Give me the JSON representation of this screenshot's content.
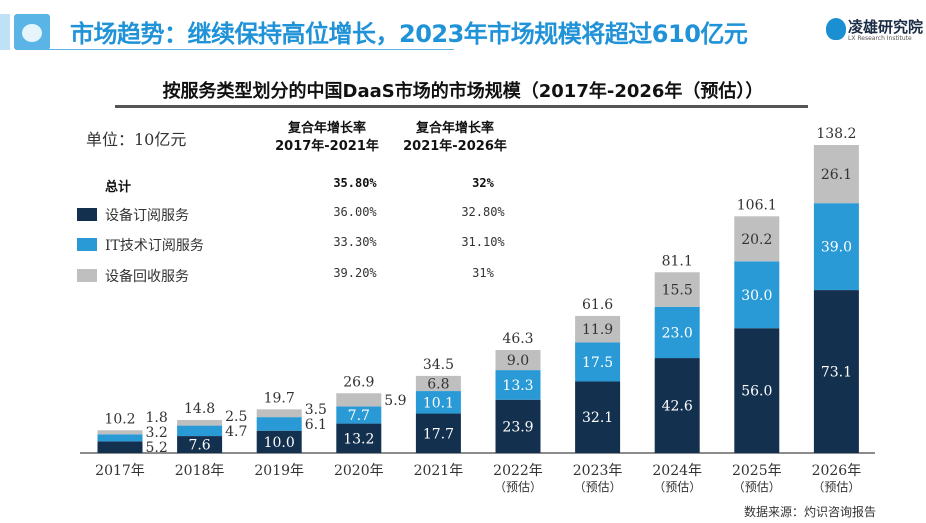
{
  "header": {
    "title": "市场趋势：继续保持高位增长，2023年市场规模将超过610亿元",
    "brand_name": "凌雄研究院",
    "brand_sub": "LX Research Institute",
    "accent": "#1f92d8"
  },
  "legend_table": {
    "unit": "单位：10亿元",
    "cagr_headers": [
      {
        "line1": "复合年增长率",
        "line2": "2017年-2021年"
      },
      {
        "line1": "复合年增长率",
        "line2": "2021年-2026年"
      }
    ],
    "rows": [
      {
        "label": "总计",
        "c1": "35.80%",
        "c2": "32%",
        "color": ""
      },
      {
        "label": "设备订阅服务",
        "c1": "36.00%",
        "c2": "32.80%",
        "color": "#13304f"
      },
      {
        "label": "IT技术订阅服务",
        "c1": "33.30%",
        "c2": "31.10%",
        "color": "#2a9ad6"
      },
      {
        "label": "设备回收服务",
        "c1": "39.20%",
        "c2": "31%",
        "color": "#bfbfbf"
      }
    ]
  },
  "source": "数据来源：灼识咨询报告",
  "chart_data": {
    "type": "bar",
    "stacked": true,
    "title": "按服务类型划分的中国DaaS市场的市场规模（2017年-2026年（预估））",
    "categories": [
      "2017年",
      "2018年",
      "2019年",
      "2020年",
      "2021年",
      "2022年",
      "2023年",
      "2024年",
      "2025年",
      "2026年"
    ],
    "category_notes": [
      "",
      "",
      "",
      "",
      "",
      "（预估）",
      "（预估）",
      "（预估）",
      "（预估）",
      "（预估）"
    ],
    "series": [
      {
        "name": "设备订阅服务",
        "color": "#13304f",
        "values": [
          5.2,
          7.6,
          10.0,
          13.2,
          17.7,
          23.9,
          32.1,
          42.6,
          56.0,
          73.1
        ]
      },
      {
        "name": "IT技术订阅服务",
        "color": "#2a9ad6",
        "values": [
          3.2,
          4.7,
          6.1,
          7.7,
          10.1,
          13.3,
          17.5,
          23.0,
          30.0,
          39.0
        ]
      },
      {
        "name": "设备回收服务",
        "color": "#bfbfbf",
        "values": [
          1.8,
          2.5,
          3.5,
          5.9,
          6.8,
          9.0,
          11.9,
          15.5,
          20.2,
          26.1
        ]
      }
    ],
    "totals": [
      10.2,
      14.8,
      19.7,
      26.9,
      34.5,
      46.3,
      61.6,
      81.1,
      106.1,
      138.2
    ],
    "ylim": [
      0,
      140
    ],
    "grid": false
  }
}
